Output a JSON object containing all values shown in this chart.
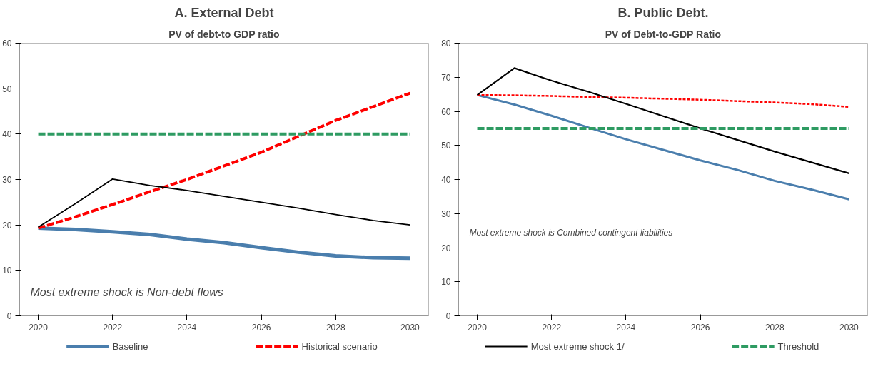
{
  "chart_data": [
    {
      "type": "line",
      "title": "A. External Debt",
      "subtitle": "PV of debt-to GDP ratio",
      "x": [
        2020,
        2021,
        2022,
        2023,
        2024,
        2025,
        2026,
        2027,
        2028,
        2029,
        2030
      ],
      "xlim": [
        2019.5,
        2030.5
      ],
      "xticks": [
        2020,
        2022,
        2024,
        2026,
        2028,
        2030
      ],
      "ylim": [
        0,
        60
      ],
      "yticks": [
        0,
        10,
        20,
        30,
        40,
        50,
        60
      ],
      "grid": false,
      "legend": "bottom",
      "annotations": [
        "Most extreme shock is Non-debt flows"
      ],
      "series": [
        {
          "name": "Baseline",
          "color": "#4a7ead",
          "line_style": "solid",
          "values": [
            19.3,
            19.0,
            18.5,
            17.9,
            16.9,
            16.1,
            15.0,
            14.0,
            13.2,
            12.8,
            12.7
          ]
        },
        {
          "name": "Historical scenario",
          "color": "#ff0000",
          "line_style": "dashed",
          "values": [
            19.3,
            21.8,
            24.5,
            27.3,
            30.0,
            33.0,
            36.0,
            39.5,
            43.0,
            46.0,
            49.0
          ]
        },
        {
          "name": "Most extreme shock 1/",
          "color": "#000000",
          "line_style": "solid",
          "values": [
            19.5,
            24.7,
            30.1,
            28.7,
            27.6,
            26.3,
            25.0,
            23.7,
            22.3,
            21.0,
            20.0
          ]
        },
        {
          "name": "Threshold",
          "color": "#2e9b62",
          "line_style": "dashed",
          "values": [
            40,
            40,
            40,
            40,
            40,
            40,
            40,
            40,
            40,
            40,
            40
          ]
        }
      ]
    },
    {
      "type": "line",
      "title": "B. Public Debt.",
      "subtitle": "PV of Debt-to-GDP Ratio",
      "x": [
        2020,
        2021,
        2022,
        2023,
        2024,
        2025,
        2026,
        2027,
        2028,
        2029,
        2030
      ],
      "xlim": [
        2019.5,
        2030.5
      ],
      "xticks": [
        2020,
        2022,
        2024,
        2026,
        2028,
        2030
      ],
      "ylim": [
        0,
        80
      ],
      "yticks": [
        0,
        10,
        20,
        30,
        40,
        50,
        60,
        70,
        80
      ],
      "grid": false,
      "annotations": [
        "Most extreme shock is Combined contingent liabilities"
      ],
      "series": [
        {
          "color": "#4a7ead",
          "line_style": "solid",
          "values": [
            64.8,
            62.0,
            58.7,
            55.2,
            51.8,
            48.7,
            45.6,
            42.8,
            39.6,
            37.0,
            34.2
          ]
        },
        {
          "color": "#ff0000",
          "line_style": "dotted",
          "values": [
            64.8,
            64.7,
            64.5,
            64.2,
            64.0,
            63.7,
            63.4,
            63.0,
            62.6,
            62.1,
            61.3
          ]
        },
        {
          "color": "#000000",
          "line_style": "solid",
          "values": [
            64.8,
            72.7,
            69.0,
            65.7,
            62.2,
            58.6,
            55.0,
            51.6,
            48.2,
            45.0,
            41.8
          ]
        },
        {
          "color": "#2e9b62",
          "line_style": "dashed",
          "values": [
            55,
            55,
            55,
            55,
            55,
            55,
            55,
            55,
            55,
            55,
            55
          ]
        }
      ]
    }
  ]
}
